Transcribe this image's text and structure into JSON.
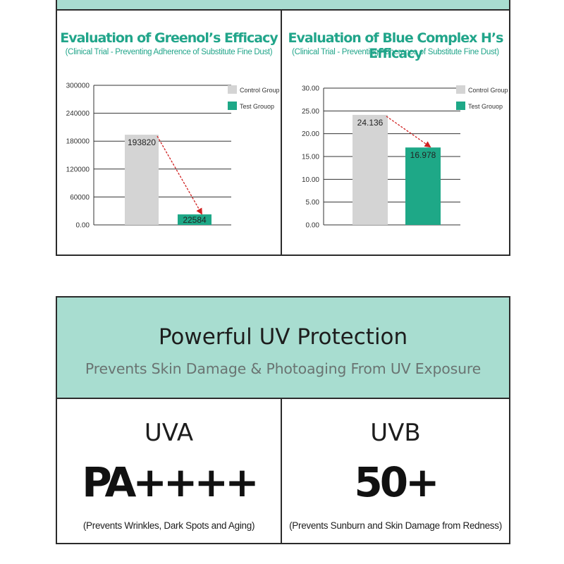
{
  "chart_data": [
    {
      "type": "bar",
      "title": "Evaluation of Greenol’s Efficacy",
      "subtitle": "(Clinical Trial - Preventing Adherence of Substitute Fine Dust)",
      "categories": [
        "Control Group",
        "Test Grouop"
      ],
      "values": [
        193820,
        22584
      ],
      "value_labels": [
        "193820",
        "22584"
      ],
      "yticks": [
        "0.00",
        "60000",
        "120000",
        "180000",
        "240000",
        "300000"
      ],
      "ylim": [
        0,
        300000
      ],
      "grid": true,
      "legend": [
        "Control Group",
        "Test Grouop"
      ],
      "legend_position": "top-right",
      "colors": [
        "#d4d4d4",
        "#1ea887"
      ]
    },
    {
      "type": "bar",
      "title": "Evaluation of Blue Complex H’s Efficacy",
      "subtitle": "(Clinical Trial - Preventing Adherence of Substitute Fine Dust)",
      "categories": [
        "Control Group",
        "Test Grouop"
      ],
      "values": [
        24.136,
        16.978
      ],
      "value_labels": [
        "24.136",
        "16.978"
      ],
      "yticks": [
        "0.00",
        "5.00",
        "10.00",
        "15.00",
        "20.00",
        "25.00",
        "30.00"
      ],
      "ylim": [
        0,
        30
      ],
      "grid": true,
      "legend": [
        "Control Group",
        "Test Grouop"
      ],
      "legend_position": "top-right",
      "colors": [
        "#d4d4d4",
        "#1ea887"
      ]
    }
  ],
  "uv": {
    "title": "Powerful UV Protection",
    "subtitle": "Prevents Skin Damage & Photoaging From UV Exposure",
    "cells": [
      {
        "label": "UVA",
        "rating": "PA++++",
        "note": "(Prevents Wrinkles, Dark Spots and Aging)"
      },
      {
        "label": "UVB",
        "rating": "50+",
        "note": "(Prevents Sunburn and Skin Damage from Redness)"
      }
    ]
  },
  "colors": {
    "mint": "#a8ddd0",
    "accent": "#21a58a",
    "border": "#2b2b2b"
  }
}
